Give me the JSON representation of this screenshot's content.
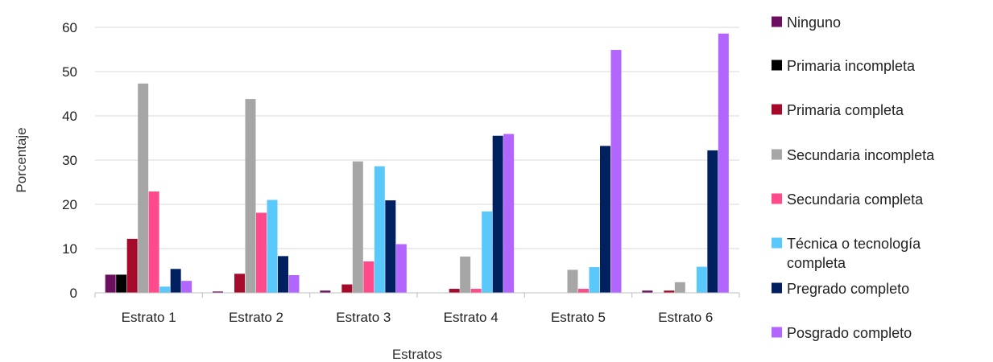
{
  "chart_data": {
    "type": "bar",
    "title": "",
    "xlabel": "Estratos",
    "ylabel": "Porcentaje",
    "ylim": [
      0,
      60
    ],
    "yticks": [
      0,
      10,
      20,
      30,
      40,
      50,
      60
    ],
    "grid": true,
    "legend_position": "right",
    "categories": [
      "Estrato 1",
      "Estrato 2",
      "Estrato 3",
      "Estrato 4",
      "Estrato 5",
      "Estrato 6"
    ],
    "series": [
      {
        "name": "Ninguno",
        "color": "#6b0f5e",
        "values": [
          4.1,
          0.3,
          0.5,
          0,
          0,
          0.5
        ]
      },
      {
        "name": "Primaria incompleta",
        "color": "#000000",
        "values": [
          4.1,
          0,
          0,
          0,
          0,
          0
        ]
      },
      {
        "name": "Primaria completa",
        "color": "#a50a2a",
        "values": [
          12.2,
          4.3,
          1.9,
          0.9,
          0,
          0.5
        ]
      },
      {
        "name": "Secundaria incompleta",
        "color": "#a6a6a6",
        "values": [
          47.3,
          43.8,
          29.7,
          8.2,
          5.2,
          2.4
        ]
      },
      {
        "name": "Secundaria completa",
        "color": "#ff4b8c",
        "values": [
          22.9,
          18.1,
          7.1,
          0.9,
          0.9,
          0
        ]
      },
      {
        "name": "Técnica o tecnología completa",
        "color": "#5bc8fb",
        "values": [
          1.4,
          21.0,
          28.6,
          18.4,
          5.8,
          5.9
        ]
      },
      {
        "name": "Pregrado completo",
        "color": "#002060",
        "values": [
          5.4,
          8.3,
          20.9,
          35.5,
          33.2,
          32.2
        ]
      },
      {
        "name": "Posgrado completo",
        "color": "#b366ff",
        "values": [
          2.7,
          4.0,
          11.0,
          35.9,
          54.9,
          58.6
        ]
      }
    ]
  }
}
